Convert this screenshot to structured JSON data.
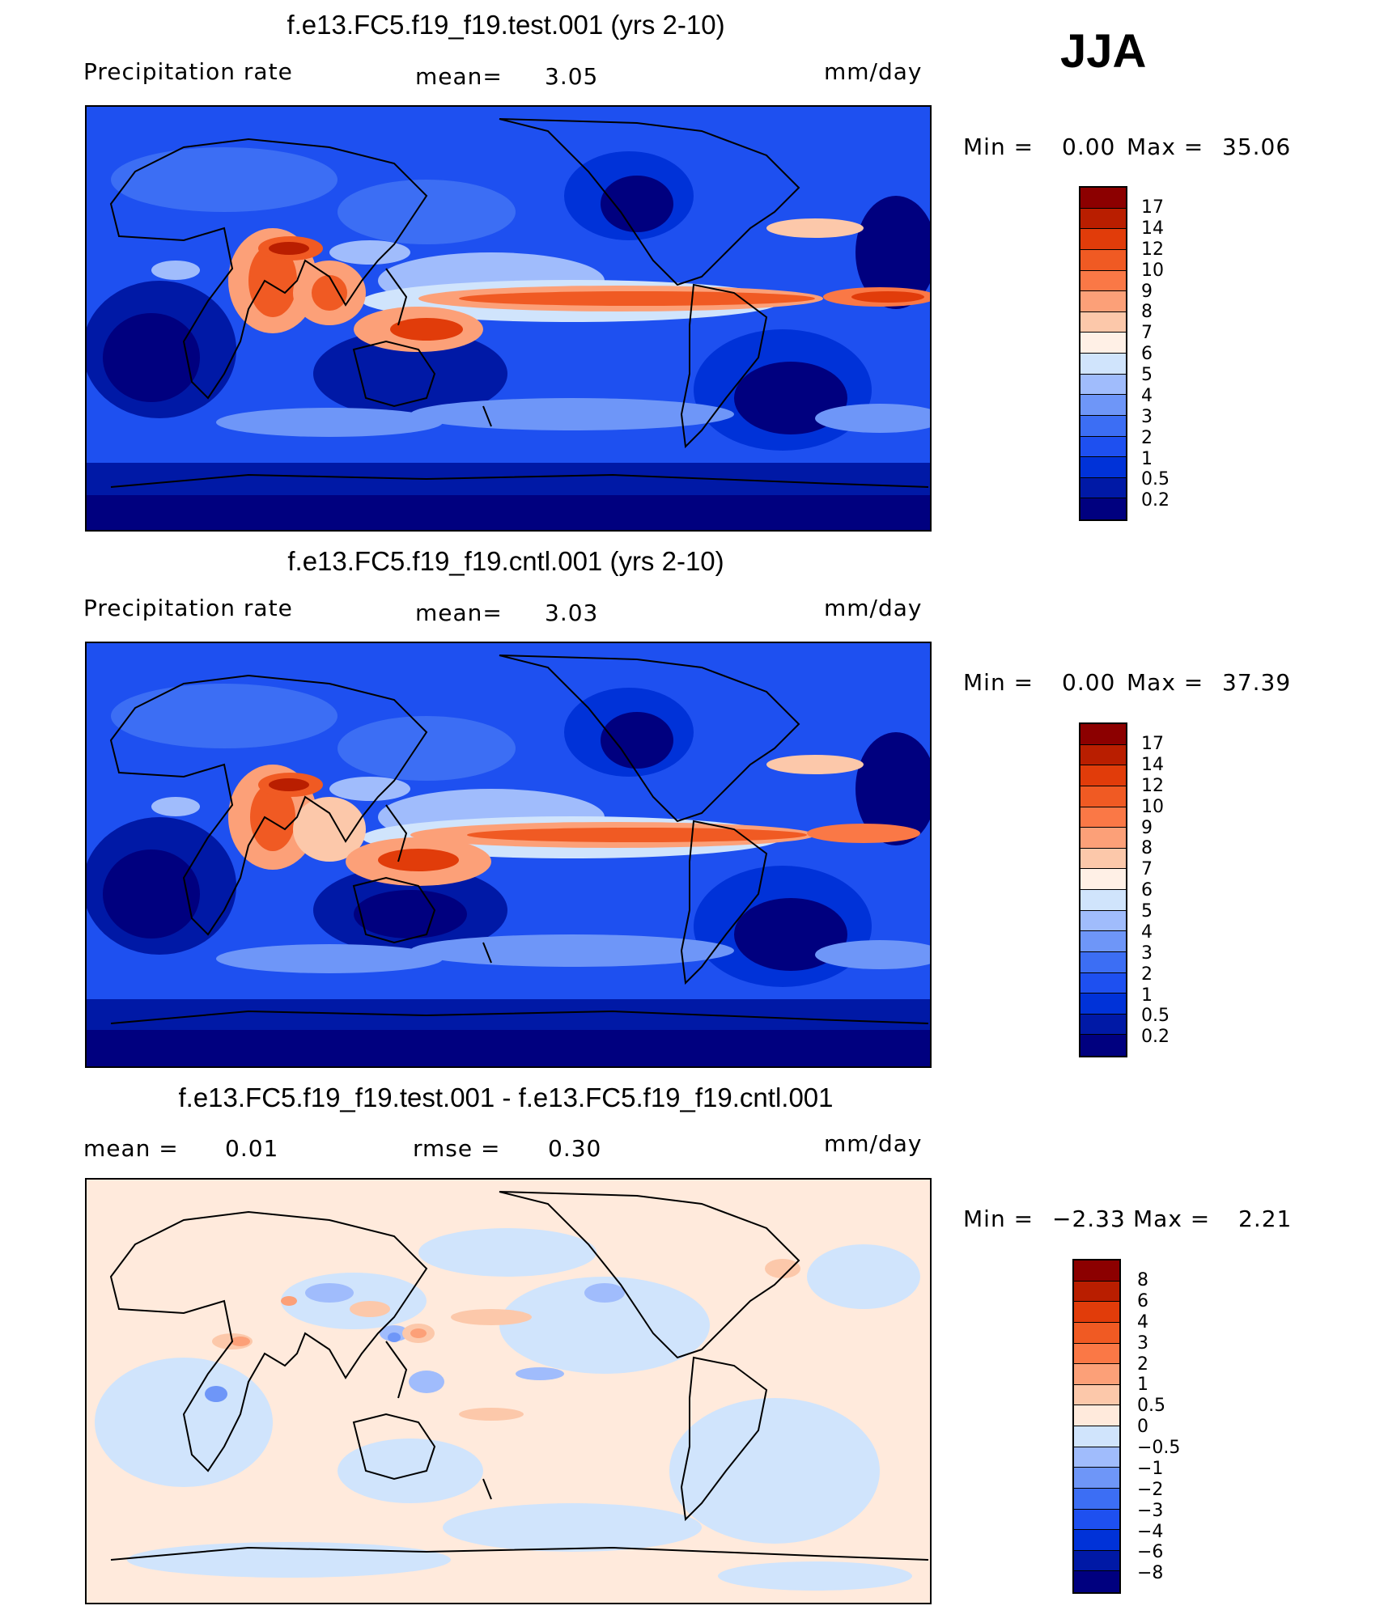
{
  "season": "JJA",
  "colors": {
    "precip_scale": [
      "#00007f",
      "#0019a6",
      "#0032d8",
      "#1e50f0",
      "#3c6ef4",
      "#6e96f8",
      "#a0bcfc",
      "#d0e4fc",
      "#fff0e6",
      "#fcc8aa",
      "#fca078",
      "#fa7846",
      "#f05a23",
      "#e13c0a",
      "#b91e00",
      "#8c0000"
    ],
    "diff_scale": [
      "#00007f",
      "#0019a6",
      "#0032d8",
      "#1e50f0",
      "#3c6ef4",
      "#6e96f8",
      "#a0bcfc",
      "#d0e4fc",
      "#ffeadc",
      "#fcc8aa",
      "#fca078",
      "#fa7846",
      "#f05a23",
      "#e13c0a",
      "#b91e00",
      "#8c0000"
    ]
  },
  "panels": [
    {
      "title": "f.e13.FC5.f19_f19.test.001 (yrs 2-10)",
      "variable": "Precipitation  rate",
      "stat1_label": "mean=",
      "stat1_value": "3.05",
      "units": "mm/day",
      "minmax": {
        "min_label": "Min  =",
        "min_value": "0.00",
        "max_label": "Max  =",
        "max_value": "35.06"
      },
      "colorbar_labels": [
        "17",
        "14",
        "12",
        "10",
        "9",
        "8",
        "7",
        "6",
        "5",
        "4",
        "3",
        "2",
        "1",
        "0.5",
        "0.2"
      ]
    },
    {
      "title": "f.e13.FC5.f19_f19.cntl.001 (yrs 2-10)",
      "variable": "Precipitation  rate",
      "stat1_label": "mean=",
      "stat1_value": "3.03",
      "units": "mm/day",
      "minmax": {
        "min_label": "Min  =",
        "min_value": "0.00",
        "max_label": "Max  =",
        "max_value": "37.39"
      },
      "colorbar_labels": [
        "17",
        "14",
        "12",
        "10",
        "9",
        "8",
        "7",
        "6",
        "5",
        "4",
        "3",
        "2",
        "1",
        "0.5",
        "0.2"
      ]
    },
    {
      "title": "f.e13.FC5.f19_f19.test.001 - f.e13.FC5.f19_f19.cntl.001",
      "stat1_label": "mean  =",
      "stat1_value": "0.01",
      "stat2_label": "rmse  =",
      "stat2_value": "0.30",
      "units": "mm/day",
      "minmax": {
        "min_label": "Min  =",
        "min_value": "−2.33",
        "max_label": "Max  =",
        "max_value": "2.21"
      },
      "colorbar_labels": [
        "8",
        "6",
        "4",
        "3",
        "2",
        "1",
        "0.5",
        "0",
        "−0.5",
        "−1",
        "−2",
        "−3",
        "−4",
        "−6",
        "−8"
      ]
    }
  ]
}
